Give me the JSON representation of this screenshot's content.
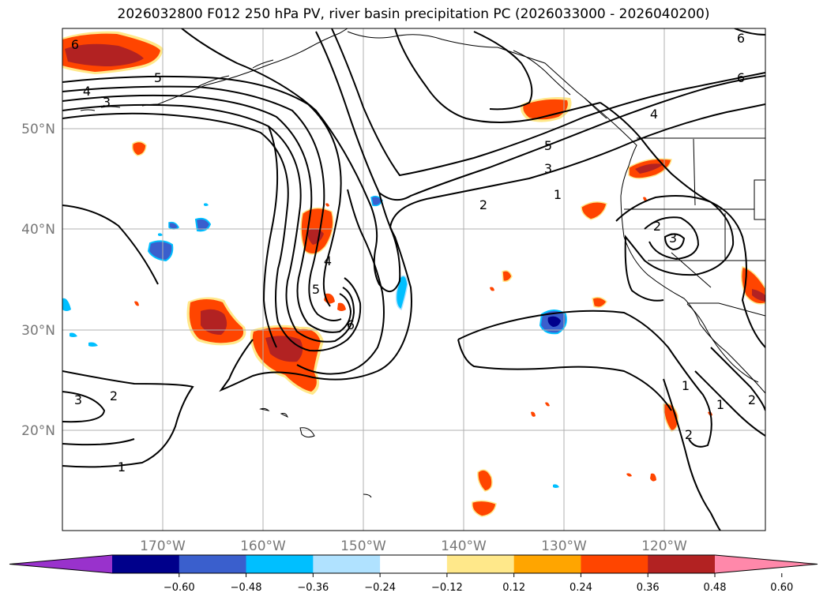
{
  "title": "2026032800 F012 250 hPa PV, river basin precipitation PC (2026033000 - 2026040200)",
  "lat_labels": [
    "50°N",
    "40°N",
    "30°N",
    "20°N"
  ],
  "lon_labels": [
    "170°W",
    "160°W",
    "150°W",
    "140°W",
    "130°W",
    "120°W"
  ],
  "map_extent": {
    "lon_min": -180,
    "lon_max": -110,
    "lat_min": 10,
    "lat_max": 60
  },
  "contour_levels": [
    1,
    2,
    3,
    4,
    5,
    6
  ],
  "contour_labels": [
    "6",
    "5",
    "4",
    "3",
    "6",
    "5",
    "4",
    "3",
    "2",
    "1",
    "4",
    "6",
    "2",
    "3",
    "4",
    "5",
    "6",
    "3",
    "2",
    "1",
    "1",
    "1",
    "2",
    "2"
  ],
  "colorbar": {
    "ticks": [
      "−0.60",
      "−0.48",
      "−0.36",
      "−0.24",
      "−0.12",
      "0.12",
      "0.24",
      "0.36",
      "0.48",
      "0.60"
    ],
    "colors": [
      "#9932cc",
      "#00008b",
      "#3a5fcd",
      "#00bfff",
      "#b0e2ff",
      "#ffffff",
      "#ffe88a",
      "#ffa500",
      "#ff4500",
      "#b22222",
      "#ff88aa"
    ]
  }
}
